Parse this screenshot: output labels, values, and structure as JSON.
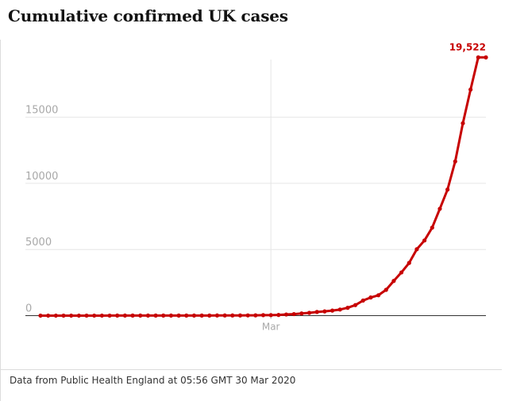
{
  "header": {
    "title": "Cumulative confirmed UK cases"
  },
  "footer": {
    "source": "Data from Public Health England at 05:56 GMT 30 Mar 2020"
  },
  "colors": {
    "series": "#c70000",
    "grid": "#e6e6e6",
    "tick_text": "#a8a8a8",
    "axis": "#333333"
  },
  "chart_data": {
    "type": "line",
    "title": "Cumulative confirmed UK cases",
    "xlabel": "",
    "ylabel": "",
    "ylim": [
      0,
      19522
    ],
    "grid": true,
    "y_ticks": [
      0,
      5000,
      10000,
      15000
    ],
    "y_tick_labels": [
      "0",
      "5000",
      "10000",
      "15000"
    ],
    "x_tick": {
      "label": "Mar",
      "date": "2020-03-01"
    },
    "end_label": "19,522",
    "series": [
      {
        "x": [
          "2020-01-31",
          "2020-02-01",
          "2020-02-02",
          "2020-02-03",
          "2020-02-04",
          "2020-02-05",
          "2020-02-06",
          "2020-02-07",
          "2020-02-08",
          "2020-02-09",
          "2020-02-10",
          "2020-02-11",
          "2020-02-12",
          "2020-02-13",
          "2020-02-14",
          "2020-02-15",
          "2020-02-16",
          "2020-02-17",
          "2020-02-18",
          "2020-02-19",
          "2020-02-20",
          "2020-02-21",
          "2020-02-22",
          "2020-02-23",
          "2020-02-24",
          "2020-02-25",
          "2020-02-26",
          "2020-02-27",
          "2020-02-28",
          "2020-02-29",
          "2020-03-01",
          "2020-03-02",
          "2020-03-03",
          "2020-03-04",
          "2020-03-05",
          "2020-03-06",
          "2020-03-07",
          "2020-03-08",
          "2020-03-09",
          "2020-03-10",
          "2020-03-11",
          "2020-03-12",
          "2020-03-13",
          "2020-03-14",
          "2020-03-15",
          "2020-03-16",
          "2020-03-17",
          "2020-03-18",
          "2020-03-19",
          "2020-03-20",
          "2020-03-21",
          "2020-03-22",
          "2020-03-23",
          "2020-03-24",
          "2020-03-25",
          "2020-03-26",
          "2020-03-27",
          "2020-03-28",
          "2020-03-29"
        ],
        "values": [
          2,
          2,
          2,
          2,
          2,
          2,
          3,
          3,
          3,
          4,
          8,
          8,
          9,
          9,
          9,
          9,
          9,
          9,
          9,
          9,
          9,
          9,
          9,
          13,
          13,
          13,
          15,
          20,
          23,
          36,
          40,
          51,
          87,
          116,
          164,
          209,
          278,
          321,
          383,
          460,
          594,
          797,
          1140,
          1372,
          1543,
          1950,
          2626,
          3269,
          3983,
          5018,
          5683,
          6650,
          8077,
          9529,
          11658,
          14543,
          17089,
          19522,
          19522
        ]
      }
    ]
  }
}
